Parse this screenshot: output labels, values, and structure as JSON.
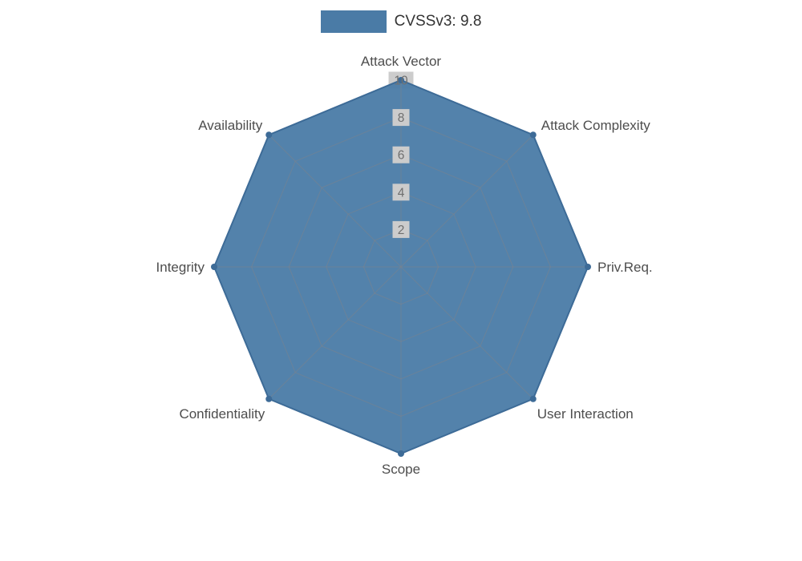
{
  "legend": {
    "label": "CVSSv3: 9.8",
    "swatch_color": "#4a7ba6"
  },
  "chart_data": {
    "type": "radar",
    "legend": [
      "CVSSv3: 9.8"
    ],
    "legend_position": "top-center",
    "categories": [
      "Attack Vector",
      "Attack Complexity",
      "Priv.Req.",
      "User Interaction",
      "Scope",
      "Confidentiality",
      "Integrity",
      "Availability"
    ],
    "series": [
      {
        "name": "CVSSv3: 9.8",
        "values": [
          10,
          10,
          10,
          10,
          10,
          10,
          10,
          10
        ]
      }
    ],
    "rmax": 10,
    "ticks": [
      2,
      4,
      6,
      8,
      10
    ],
    "grid_shape": "polygon",
    "grid": true,
    "colors": {
      "fill": "#4a7ba6",
      "outline": "#3d6b97",
      "grid": "#7d838d",
      "axis_label": "#4d4d4d",
      "tick_text": "#6f6f6f",
      "tick_bg": "#cccccc"
    }
  }
}
